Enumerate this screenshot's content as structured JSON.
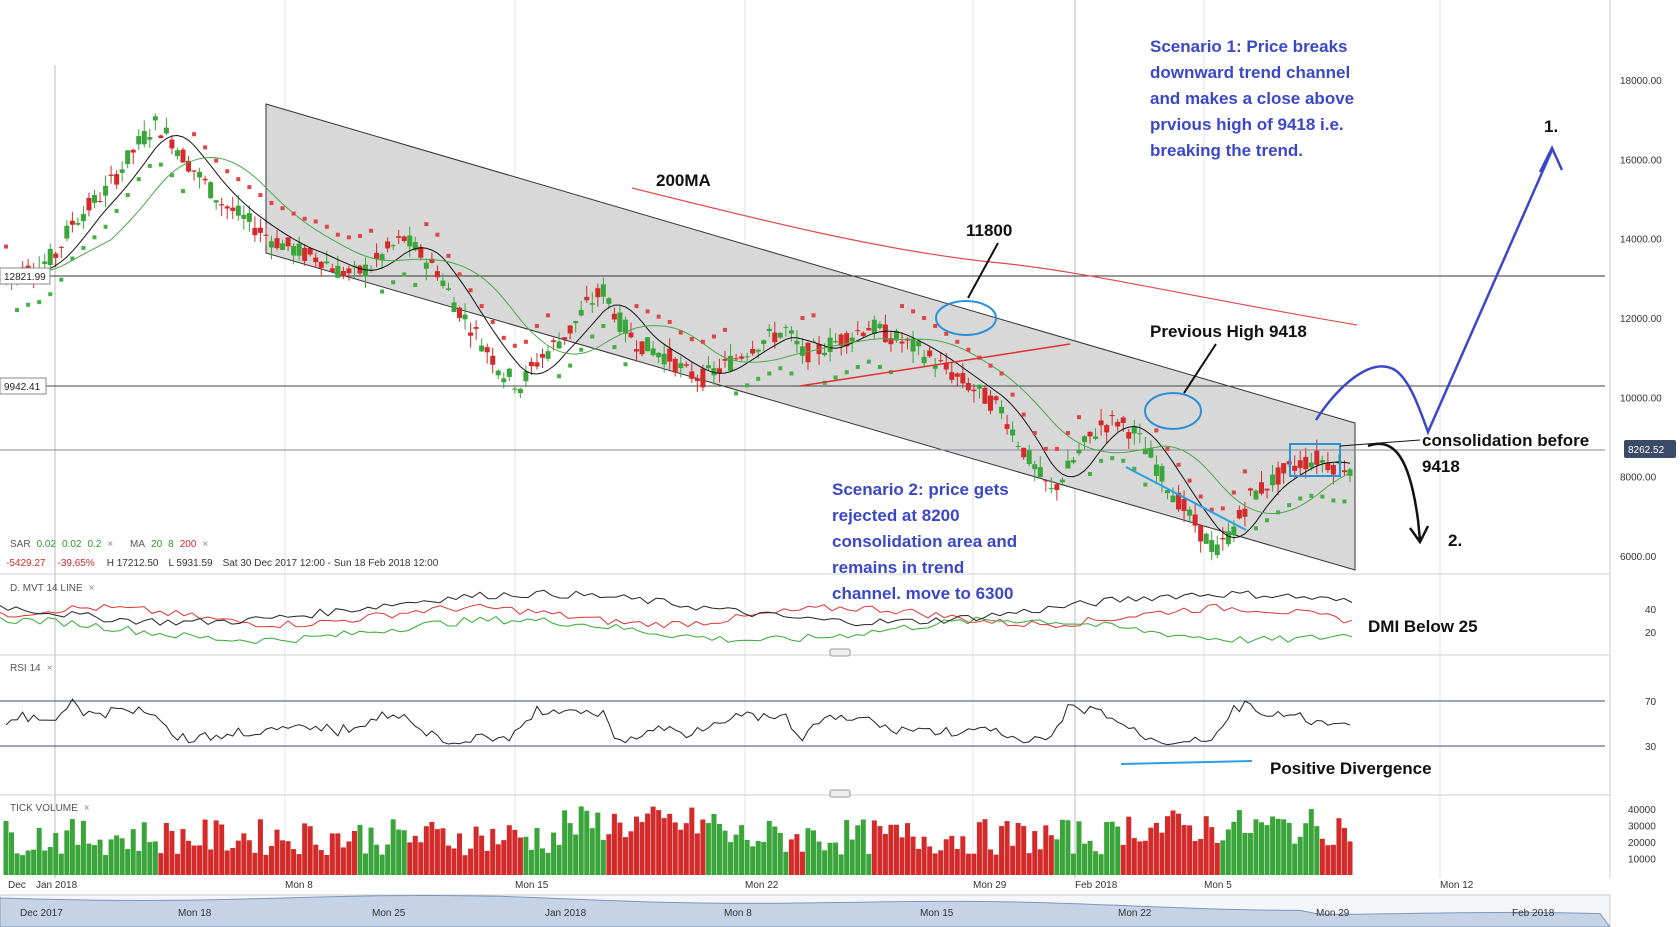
{
  "indicators": {
    "main_legend": {
      "sar_name": "SAR",
      "sar_p1": "0.02",
      "sar_p2": "0.02",
      "sar_p3": "0.2",
      "ma_name": "MA",
      "ma_p1": "20",
      "ma_p2": "8",
      "ma_p3": "200",
      "close_x": "×",
      "change": "-5429.27",
      "change_pct": "-39.65%",
      "high": "H 17212.50",
      "low": "L 5931.59",
      "range": "Sat 30 Dec 2017 12:00 - Sun 18 Feb 2018 12:00"
    },
    "dmi_label": "D. MVT  14  LINE",
    "rsi_label": "RSI  14",
    "volume_label": "TICK VOLUME",
    "close_x": "×"
  },
  "price_axis": [
    "18000.00",
    "16000.00",
    "14000.00",
    "12000.00",
    "10000.00",
    "8000.00",
    "6000.00"
  ],
  "price_tags": {
    "hline1": "12821.99",
    "hline2": "9942.41",
    "current": "8262.52"
  },
  "dmi_axis": [
    "40",
    "20"
  ],
  "rsi_axis": [
    "70",
    "30"
  ],
  "volume_axis": [
    "40000",
    "30000",
    "20000",
    "10000"
  ],
  "time_axis": [
    "Dec",
    "Jan 2018",
    "Mon 8",
    "Mon 15",
    "Mon 22",
    "Mon 29",
    "Feb 2018",
    "Mon 5",
    "Mon 12"
  ],
  "navigator_axis": [
    "Dec 2017",
    "Mon 18",
    "Mon 25",
    "Jan 2018",
    "Mon 8",
    "Mon 15",
    "Mon 22",
    "Mon 29",
    "Feb 2018"
  ],
  "annotations": {
    "scenario1": [
      "Scenario 1: Price breaks",
      "downward trend channel",
      "and makes a close above",
      "prvious high of 9418 i.e.",
      "breaking the trend."
    ],
    "scenario2": [
      "Scenario 2: price gets",
      "rejected at 8200",
      "consolidation area and",
      "remains in trend",
      "channel. move to 6300"
    ],
    "ma200": "200MA",
    "level_11800": "11800",
    "prev_high": "Previous High 9418",
    "consolidation": [
      "consolidation before",
      "9418"
    ],
    "target1": "1.",
    "target2": "2.",
    "dmi_note": "DMI Below 25",
    "rsi_note": "Positive Divergence"
  },
  "colors": {
    "bull": "#3aa53a",
    "bear": "#d42a2a",
    "channel": "#d6d6d6",
    "ma200": "#e04a4a",
    "annotation_blue": "#3a48c8",
    "ellipse": "#2a90d8"
  },
  "chart_data": {
    "type": "candlestick",
    "title": "",
    "ylim": [
      5000,
      19000
    ],
    "y_ticks": [
      18000,
      16000,
      14000,
      12000,
      10000,
      8000,
      6000
    ],
    "horizontal_levels": [
      12821.99,
      9942.41
    ],
    "last_price": 8262.52,
    "close_series": [
      12900,
      13200,
      13300,
      13600,
      14400,
      14800,
      15200,
      15800,
      16400,
      16900,
      16500,
      15900,
      15400,
      14900,
      14600,
      14300,
      14000,
      13800,
      13600,
      13500,
      13200,
      13100,
      13300,
      13700,
      14000,
      13600,
      13200,
      12400,
      11800,
      11200,
      10600,
      10300,
      10900,
      11300,
      11700,
      12300,
      12700,
      11900,
      11400,
      11200,
      11000,
      10600,
      10500,
      10700,
      11000,
      11300,
      11500,
      11700,
      11100,
      11200,
      11400,
      11600,
      11800,
      11600,
      11400,
      11200,
      10900,
      10600,
      10300,
      10000,
      9700,
      8900,
      8200,
      7600,
      8200,
      8800,
      9300,
      9400,
      9100,
      8500,
      7800,
      7200,
      6600,
      6100,
      6700,
      7500,
      7800,
      8100,
      8350,
      8450,
      8300,
      8262.52
    ]
  }
}
